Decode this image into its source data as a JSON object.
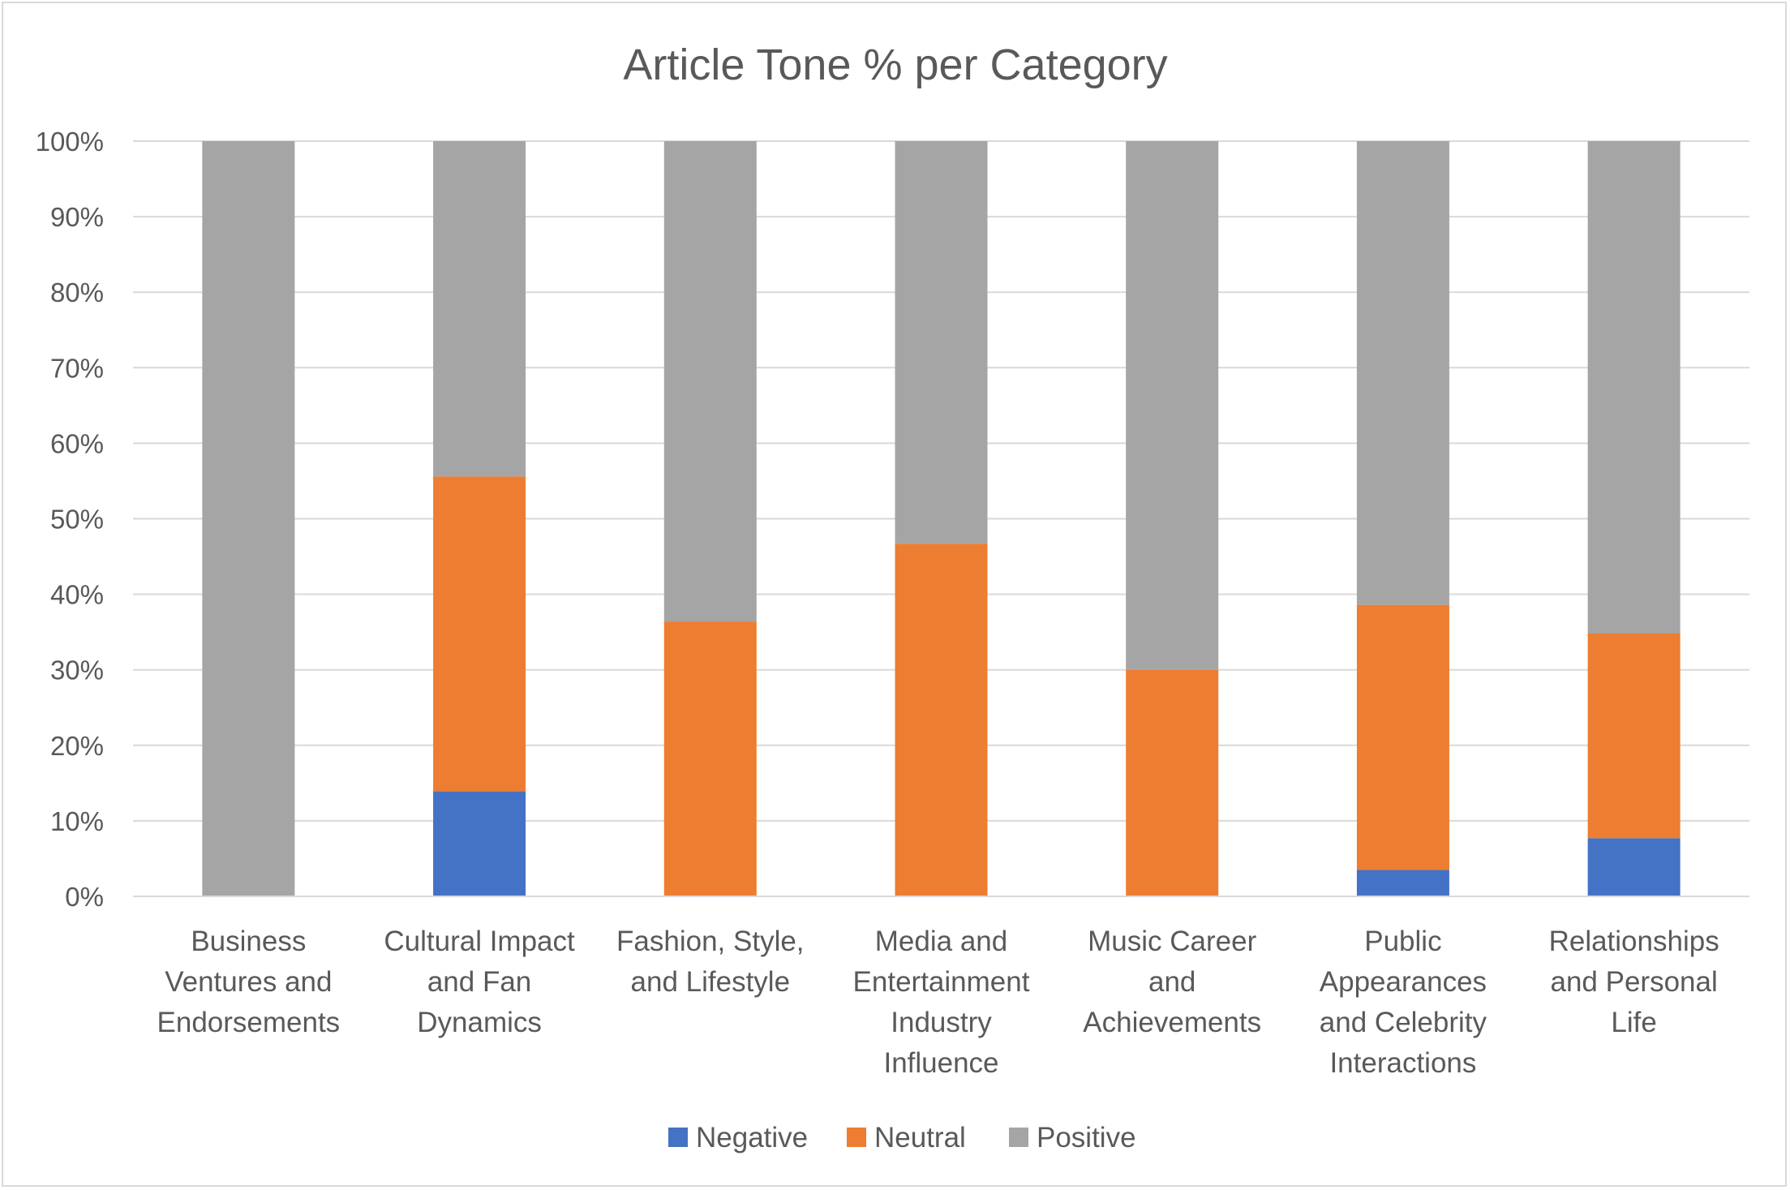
{
  "chart_data": {
    "type": "bar",
    "stacked": true,
    "title": "Article Tone % per Category",
    "xlabel": "",
    "ylabel": "",
    "ylim": [
      0,
      100
    ],
    "y_ticks": [
      "0%",
      "10%",
      "20%",
      "30%",
      "40%",
      "50%",
      "60%",
      "70%",
      "80%",
      "90%",
      "100%"
    ],
    "grid": true,
    "legend_position": "bottom",
    "categories": [
      [
        "Business",
        "Ventures and",
        "Endorsements"
      ],
      [
        "Cultural Impact",
        "and Fan",
        "Dynamics"
      ],
      [
        "Fashion, Style,",
        "and Lifestyle"
      ],
      [
        "Media and",
        "Entertainment",
        "Industry",
        "Influence"
      ],
      [
        "Music Career",
        "and",
        "Achievements"
      ],
      [
        "Public",
        "Appearances",
        "and Celebrity",
        "Interactions"
      ],
      [
        "Relationships",
        "and Personal",
        "Life"
      ]
    ],
    "series": [
      {
        "name": "Negative",
        "color": "#4472c4",
        "values": [
          0,
          13.9,
          0,
          0,
          0,
          3.5,
          7.7
        ]
      },
      {
        "name": "Neutral",
        "color": "#ed7d31",
        "values": [
          0,
          41.7,
          36.4,
          46.7,
          30.0,
          35.1,
          27.1
        ]
      },
      {
        "name": "Positive",
        "color": "#a5a5a5",
        "values": [
          100,
          44.4,
          63.6,
          53.3,
          70.0,
          61.4,
          65.2
        ]
      }
    ]
  }
}
